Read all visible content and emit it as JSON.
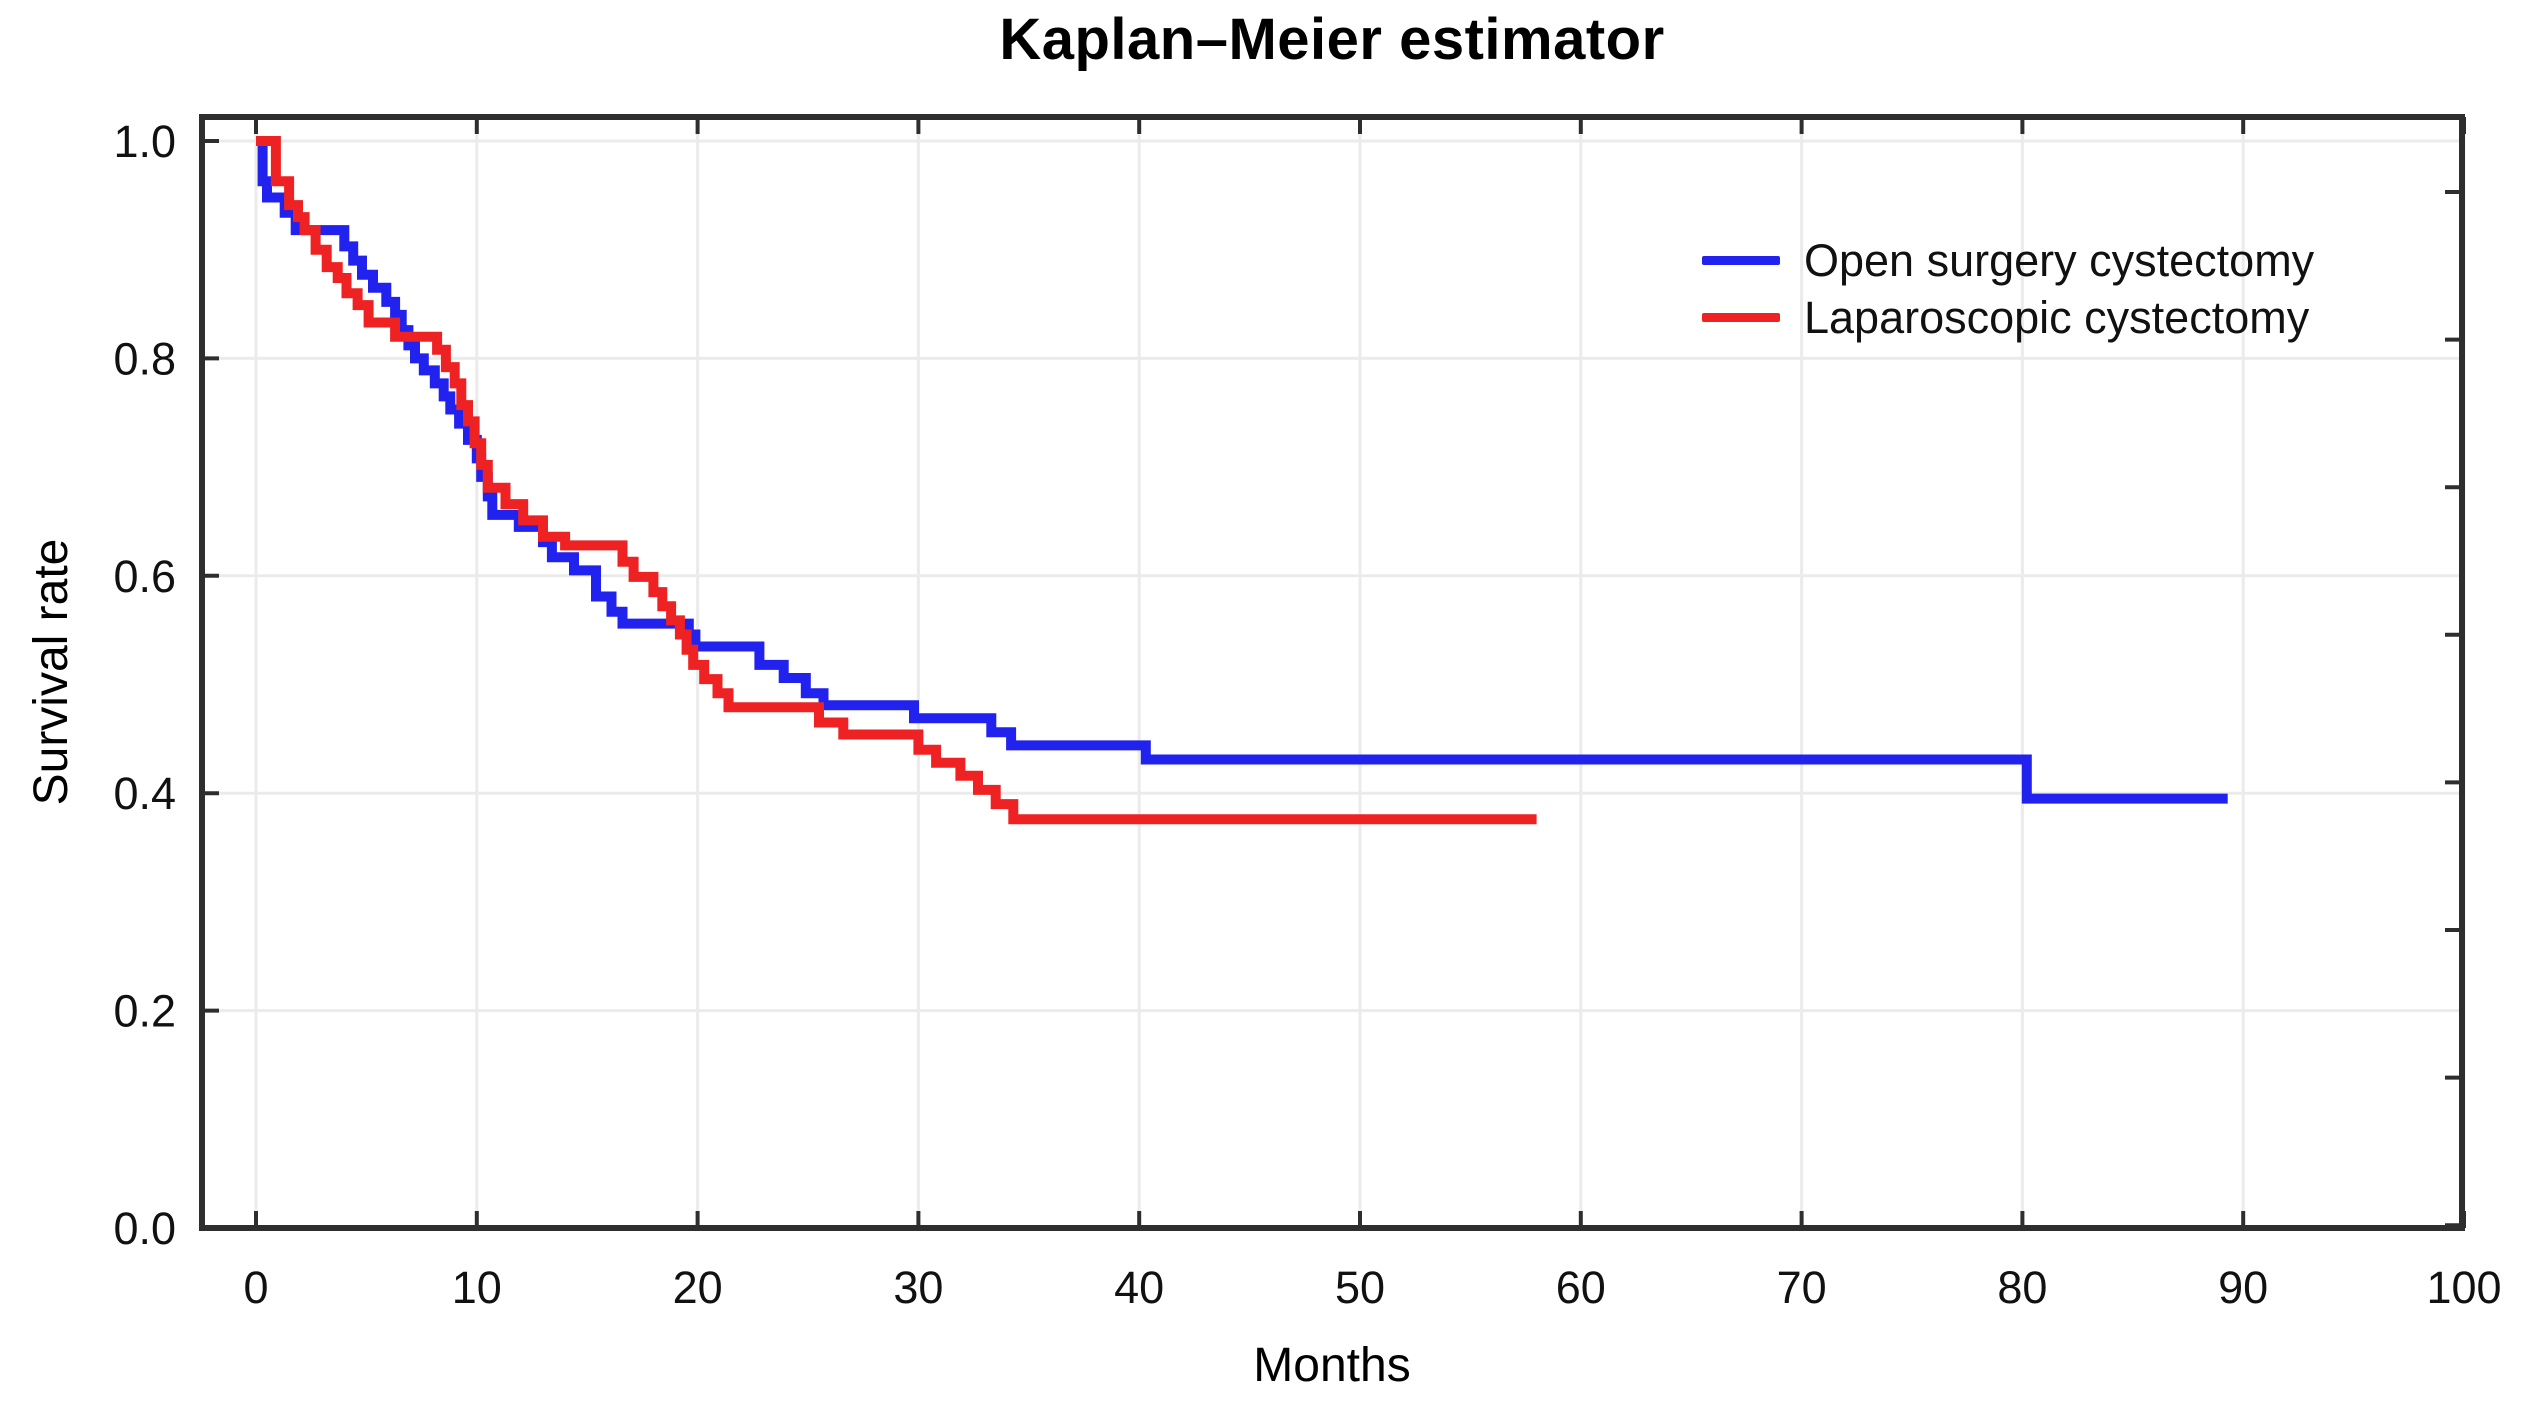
{
  "chart_data": {
    "type": "line",
    "subtype": "kaplan-meier-step",
    "title": "Kaplan–Meier estimator",
    "xlabel": "Months",
    "ylabel": "Survival rate",
    "xlim": [
      -2.4,
      100
    ],
    "ylim": [
      0,
      1.02
    ],
    "grid": true,
    "legend_position": "upper-right-inside",
    "xticks": {
      "values": [
        0,
        10,
        20,
        30,
        40,
        50,
        60,
        70,
        80,
        90,
        100
      ],
      "labels": [
        "0",
        "10",
        "20",
        "30",
        "40",
        "50",
        "60",
        "70",
        "80",
        "90",
        "100"
      ]
    },
    "yticks": {
      "values": [
        0.0,
        0.2,
        0.4,
        0.6,
        0.8,
        1.0
      ],
      "labels": [
        "0.0",
        "0.2",
        "0.4",
        "0.6",
        "0.8",
        "1.0"
      ]
    },
    "colors": {
      "open_surgery": "#2222ee",
      "laparoscopic": "#ee2222",
      "frame": "#2e2e2e",
      "gridline": "#ebebeb",
      "text": "#111111"
    },
    "series": [
      {
        "name": "Open surgery cystectomy",
        "color": "#2222ee",
        "end_time": 89.3,
        "steps": [
          [
            0,
            1.0
          ],
          [
            0.3,
            0.963
          ],
          [
            0.5,
            0.948
          ],
          [
            1.3,
            0.934
          ],
          [
            1.8,
            0.918
          ],
          [
            4.0,
            0.903
          ],
          [
            4.4,
            0.89
          ],
          [
            4.8,
            0.877
          ],
          [
            5.3,
            0.865
          ],
          [
            5.9,
            0.852
          ],
          [
            6.3,
            0.84
          ],
          [
            6.6,
            0.826
          ],
          [
            6.9,
            0.812
          ],
          [
            7.2,
            0.8
          ],
          [
            7.6,
            0.789
          ],
          [
            8.1,
            0.777
          ],
          [
            8.5,
            0.765
          ],
          [
            8.8,
            0.753
          ],
          [
            9.2,
            0.74
          ],
          [
            9.6,
            0.725
          ],
          [
            10.0,
            0.708
          ],
          [
            10.2,
            0.691
          ],
          [
            10.5,
            0.673
          ],
          [
            10.7,
            0.656
          ],
          [
            11.9,
            0.645
          ],
          [
            13.0,
            0.631
          ],
          [
            13.4,
            0.617
          ],
          [
            14.4,
            0.605
          ],
          [
            15.4,
            0.581
          ],
          [
            16.1,
            0.567
          ],
          [
            16.6,
            0.556
          ],
          [
            19.6,
            0.546
          ],
          [
            19.9,
            0.535
          ],
          [
            22.8,
            0.518
          ],
          [
            23.9,
            0.506
          ],
          [
            24.9,
            0.492
          ],
          [
            25.7,
            0.481
          ],
          [
            29.8,
            0.469
          ],
          [
            33.3,
            0.456
          ],
          [
            34.2,
            0.444
          ],
          [
            40.3,
            0.431
          ],
          [
            80.2,
            0.395
          ]
        ]
      },
      {
        "name": "Laparoscopic cystectomy",
        "color": "#ee2222",
        "end_time": 58.0,
        "steps": [
          [
            0,
            1.0
          ],
          [
            0.9,
            0.963
          ],
          [
            1.5,
            0.941
          ],
          [
            1.9,
            0.93
          ],
          [
            2.2,
            0.918
          ],
          [
            2.7,
            0.9
          ],
          [
            3.2,
            0.884
          ],
          [
            3.7,
            0.874
          ],
          [
            4.1,
            0.86
          ],
          [
            4.6,
            0.849
          ],
          [
            5.1,
            0.833
          ],
          [
            6.3,
            0.82
          ],
          [
            8.2,
            0.808
          ],
          [
            8.6,
            0.792
          ],
          [
            9.0,
            0.777
          ],
          [
            9.3,
            0.757
          ],
          [
            9.6,
            0.742
          ],
          [
            9.9,
            0.722
          ],
          [
            10.2,
            0.702
          ],
          [
            10.5,
            0.681
          ],
          [
            11.3,
            0.666
          ],
          [
            12.1,
            0.651
          ],
          [
            13.0,
            0.636
          ],
          [
            14.0,
            0.628
          ],
          [
            16.6,
            0.613
          ],
          [
            17.1,
            0.599
          ],
          [
            18.0,
            0.585
          ],
          [
            18.4,
            0.572
          ],
          [
            18.8,
            0.559
          ],
          [
            19.2,
            0.546
          ],
          [
            19.5,
            0.532
          ],
          [
            19.8,
            0.518
          ],
          [
            20.3,
            0.505
          ],
          [
            20.9,
            0.492
          ],
          [
            21.4,
            0.479
          ],
          [
            25.5,
            0.465
          ],
          [
            26.6,
            0.454
          ],
          [
            30.0,
            0.44
          ],
          [
            30.8,
            0.428
          ],
          [
            31.9,
            0.416
          ],
          [
            32.7,
            0.403
          ],
          [
            33.5,
            0.39
          ],
          [
            34.3,
            0.376
          ]
        ]
      }
    ]
  }
}
